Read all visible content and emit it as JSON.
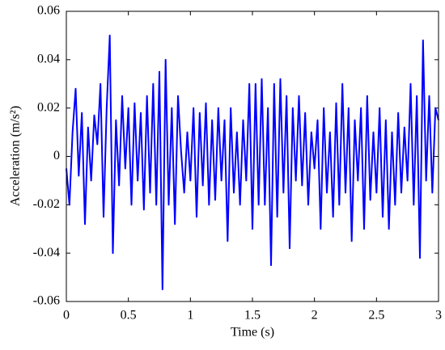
{
  "chart_data": {
    "type": "line",
    "xlabel": "Time (s)",
    "ylabel": "Acceleration (m/s²)",
    "xlim": [
      0,
      3
    ],
    "xticks": [
      0,
      0.5,
      1,
      1.5,
      2,
      2.5,
      3
    ],
    "ylim": [
      -0.06,
      0.06
    ],
    "yticks": [
      -0.06,
      -0.04,
      -0.02,
      0,
      0.02,
      0.04,
      0.06
    ],
    "x": [
      0,
      0.025,
      0.05,
      0.075,
      0.1,
      0.125,
      0.15,
      0.175,
      0.2,
      0.225,
      0.25,
      0.275,
      0.3,
      0.325,
      0.35,
      0.375,
      0.4,
      0.425,
      0.45,
      0.475,
      0.5,
      0.525,
      0.55,
      0.575,
      0.6,
      0.625,
      0.65,
      0.675,
      0.7,
      0.725,
      0.75,
      0.775,
      0.8,
      0.825,
      0.85,
      0.875,
      0.9,
      0.925,
      0.95,
      0.975,
      1,
      1.025,
      1.05,
      1.075,
      1.1,
      1.125,
      1.15,
      1.175,
      1.2,
      1.225,
      1.25,
      1.275,
      1.3,
      1.325,
      1.35,
      1.375,
      1.4,
      1.425,
      1.45,
      1.475,
      1.5,
      1.525,
      1.55,
      1.575,
      1.6,
      1.625,
      1.65,
      1.675,
      1.7,
      1.725,
      1.75,
      1.775,
      1.8,
      1.825,
      1.85,
      1.875,
      1.9,
      1.925,
      1.95,
      1.975,
      2,
      2.025,
      2.05,
      2.075,
      2.1,
      2.125,
      2.15,
      2.175,
      2.2,
      2.225,
      2.25,
      2.275,
      2.3,
      2.325,
      2.35,
      2.375,
      2.4,
      2.425,
      2.45,
      2.475,
      2.5,
      2.525,
      2.55,
      2.575,
      2.6,
      2.625,
      2.65,
      2.675,
      2.7,
      2.725,
      2.75,
      2.775,
      2.8,
      2.825,
      2.85,
      2.875,
      2.9,
      2.925,
      2.95,
      2.975,
      3
    ],
    "series": [
      {
        "color": "#0000ff",
        "values": [
          -0.005,
          -0.02,
          0.01,
          0.028,
          -0.008,
          0.018,
          -0.028,
          0.012,
          -0.01,
          0.017,
          0.005,
          0.03,
          -0.025,
          0.02,
          0.05,
          -0.04,
          0.015,
          -0.012,
          0.025,
          -0.005,
          0.02,
          -0.02,
          0.022,
          -0.01,
          0.018,
          -0.022,
          0.025,
          -0.015,
          0.03,
          -0.02,
          0.035,
          -0.055,
          0.04,
          -0.02,
          0.02,
          -0.028,
          0.025,
          0.002,
          -0.015,
          0.01,
          -0.01,
          0.02,
          -0.025,
          0.018,
          -0.012,
          0.022,
          -0.02,
          0.015,
          -0.018,
          0.02,
          -0.01,
          0.015,
          -0.035,
          0.02,
          -0.015,
          0.01,
          -0.02,
          0.015,
          -0.01,
          0.03,
          -0.03,
          0.03,
          -0.02,
          0.032,
          -0.02,
          0.02,
          -0.045,
          0.03,
          -0.025,
          0.032,
          -0.015,
          0.025,
          -0.038,
          0.02,
          -0.01,
          0.025,
          -0.012,
          0.018,
          -0.02,
          0.01,
          -0.005,
          0.015,
          -0.03,
          0.02,
          -0.015,
          0.01,
          -0.025,
          0.022,
          -0.02,
          0.03,
          -0.015,
          0.02,
          -0.035,
          0.015,
          -0.01,
          0.02,
          -0.03,
          0.025,
          -0.018,
          0.01,
          -0.015,
          0.02,
          -0.025,
          0.015,
          -0.03,
          0.01,
          -0.02,
          0.018,
          -0.015,
          0.012,
          -0.01,
          0.03,
          -0.02,
          0.025,
          -0.042,
          0.048,
          -0.01,
          0.025,
          -0.015,
          0.02,
          0.015
        ]
      }
    ]
  }
}
